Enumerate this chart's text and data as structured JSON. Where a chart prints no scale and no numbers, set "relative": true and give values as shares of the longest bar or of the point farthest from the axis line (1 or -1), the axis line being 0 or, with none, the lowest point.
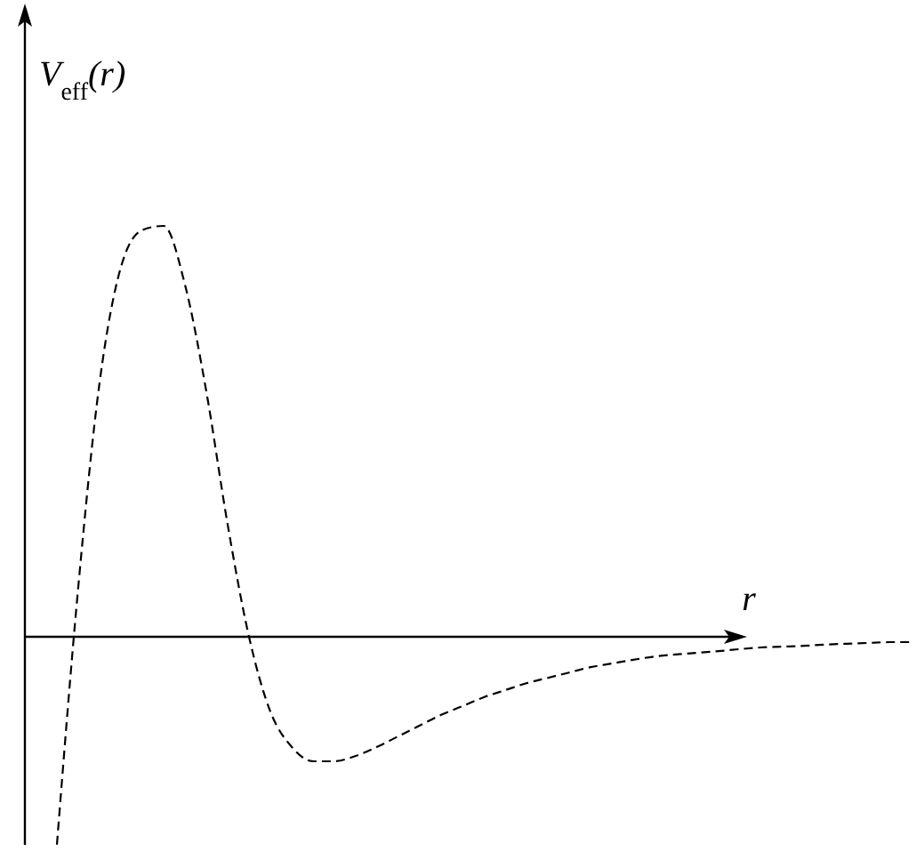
{
  "chart_data": {
    "type": "line",
    "relative": true,
    "xlabel": "r",
    "ylabel": "V$_{eff}$(r)",
    "line_style": "dashed",
    "categories": [
      null,
      null,
      null,
      null,
      null,
      null,
      null,
      null,
      null,
      null,
      null,
      null,
      null,
      null,
      null,
      null,
      null,
      null,
      null,
      null,
      null,
      null,
      null,
      null,
      null,
      null,
      null,
      null,
      null,
      null,
      null,
      null,
      null,
      null,
      null,
      null,
      null,
      null,
      null,
      null,
      null
    ],
    "series": [
      {
        "color": "#000000",
        "values": [
          -0.506,
          0.121,
          0.619,
          0.9,
          0.99,
          1,
          0.857,
          0.597,
          0.273,
          0,
          -0.182,
          -0.268,
          -0.303,
          -0.303,
          -0.29,
          -0.268,
          -0.242,
          -0.216,
          -0.19,
          -0.169,
          -0.147,
          -0.13,
          -0.113,
          -0.1,
          -0.087,
          -0.074,
          -0.065,
          -0.056,
          -0.048,
          -0.043,
          -0.039,
          -0.035,
          -0.03,
          -0.026,
          -0.024,
          -0.022,
          -0.019,
          -0.017,
          -0.015,
          -0.013,
          -0.013
        ]
      }
    ]
  }
}
